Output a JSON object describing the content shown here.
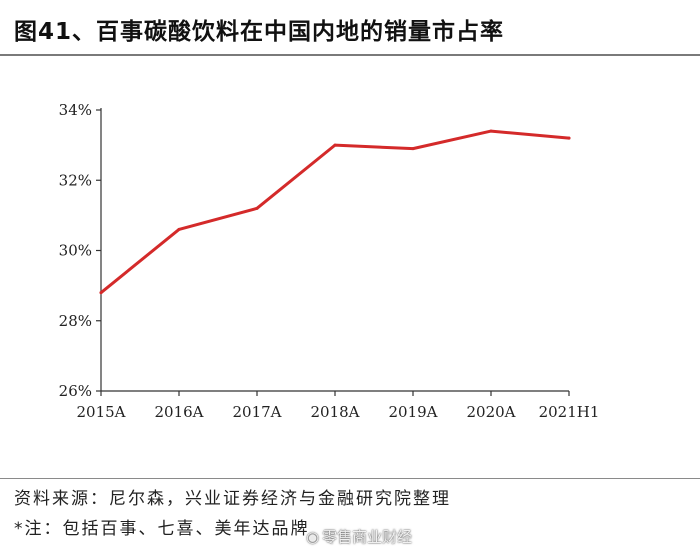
{
  "title": "图41、百事碳酸饮料在中国内地的销量市占率",
  "chart_data": {
    "type": "line",
    "title": "图41、百事碳酸饮料在中国内地的销量市占率",
    "categories": [
      "2015A",
      "2016A",
      "2017A",
      "2018A",
      "2019A",
      "2020A",
      "2021H1"
    ],
    "series": [
      {
        "values": [
          28.8,
          30.6,
          31.2,
          33.0,
          32.9,
          33.4,
          33.2
        ]
      }
    ],
    "ylim": [
      26,
      34
    ],
    "yticks": [
      26,
      28,
      30,
      32,
      34
    ],
    "ytick_labels": [
      "26%",
      "28%",
      "30%",
      "32%",
      "34%"
    ],
    "xlabel": "",
    "ylabel": "",
    "grid": false,
    "line_color": "#d42a2a"
  },
  "footer": {
    "source": "资料来源：尼尔森，兴业证券经济与金融研究院整理",
    "note": "*注：包括百事、七喜、美年达品牌"
  },
  "watermark": {
    "icon": "weibo-icon",
    "text": "零售商业财经"
  }
}
